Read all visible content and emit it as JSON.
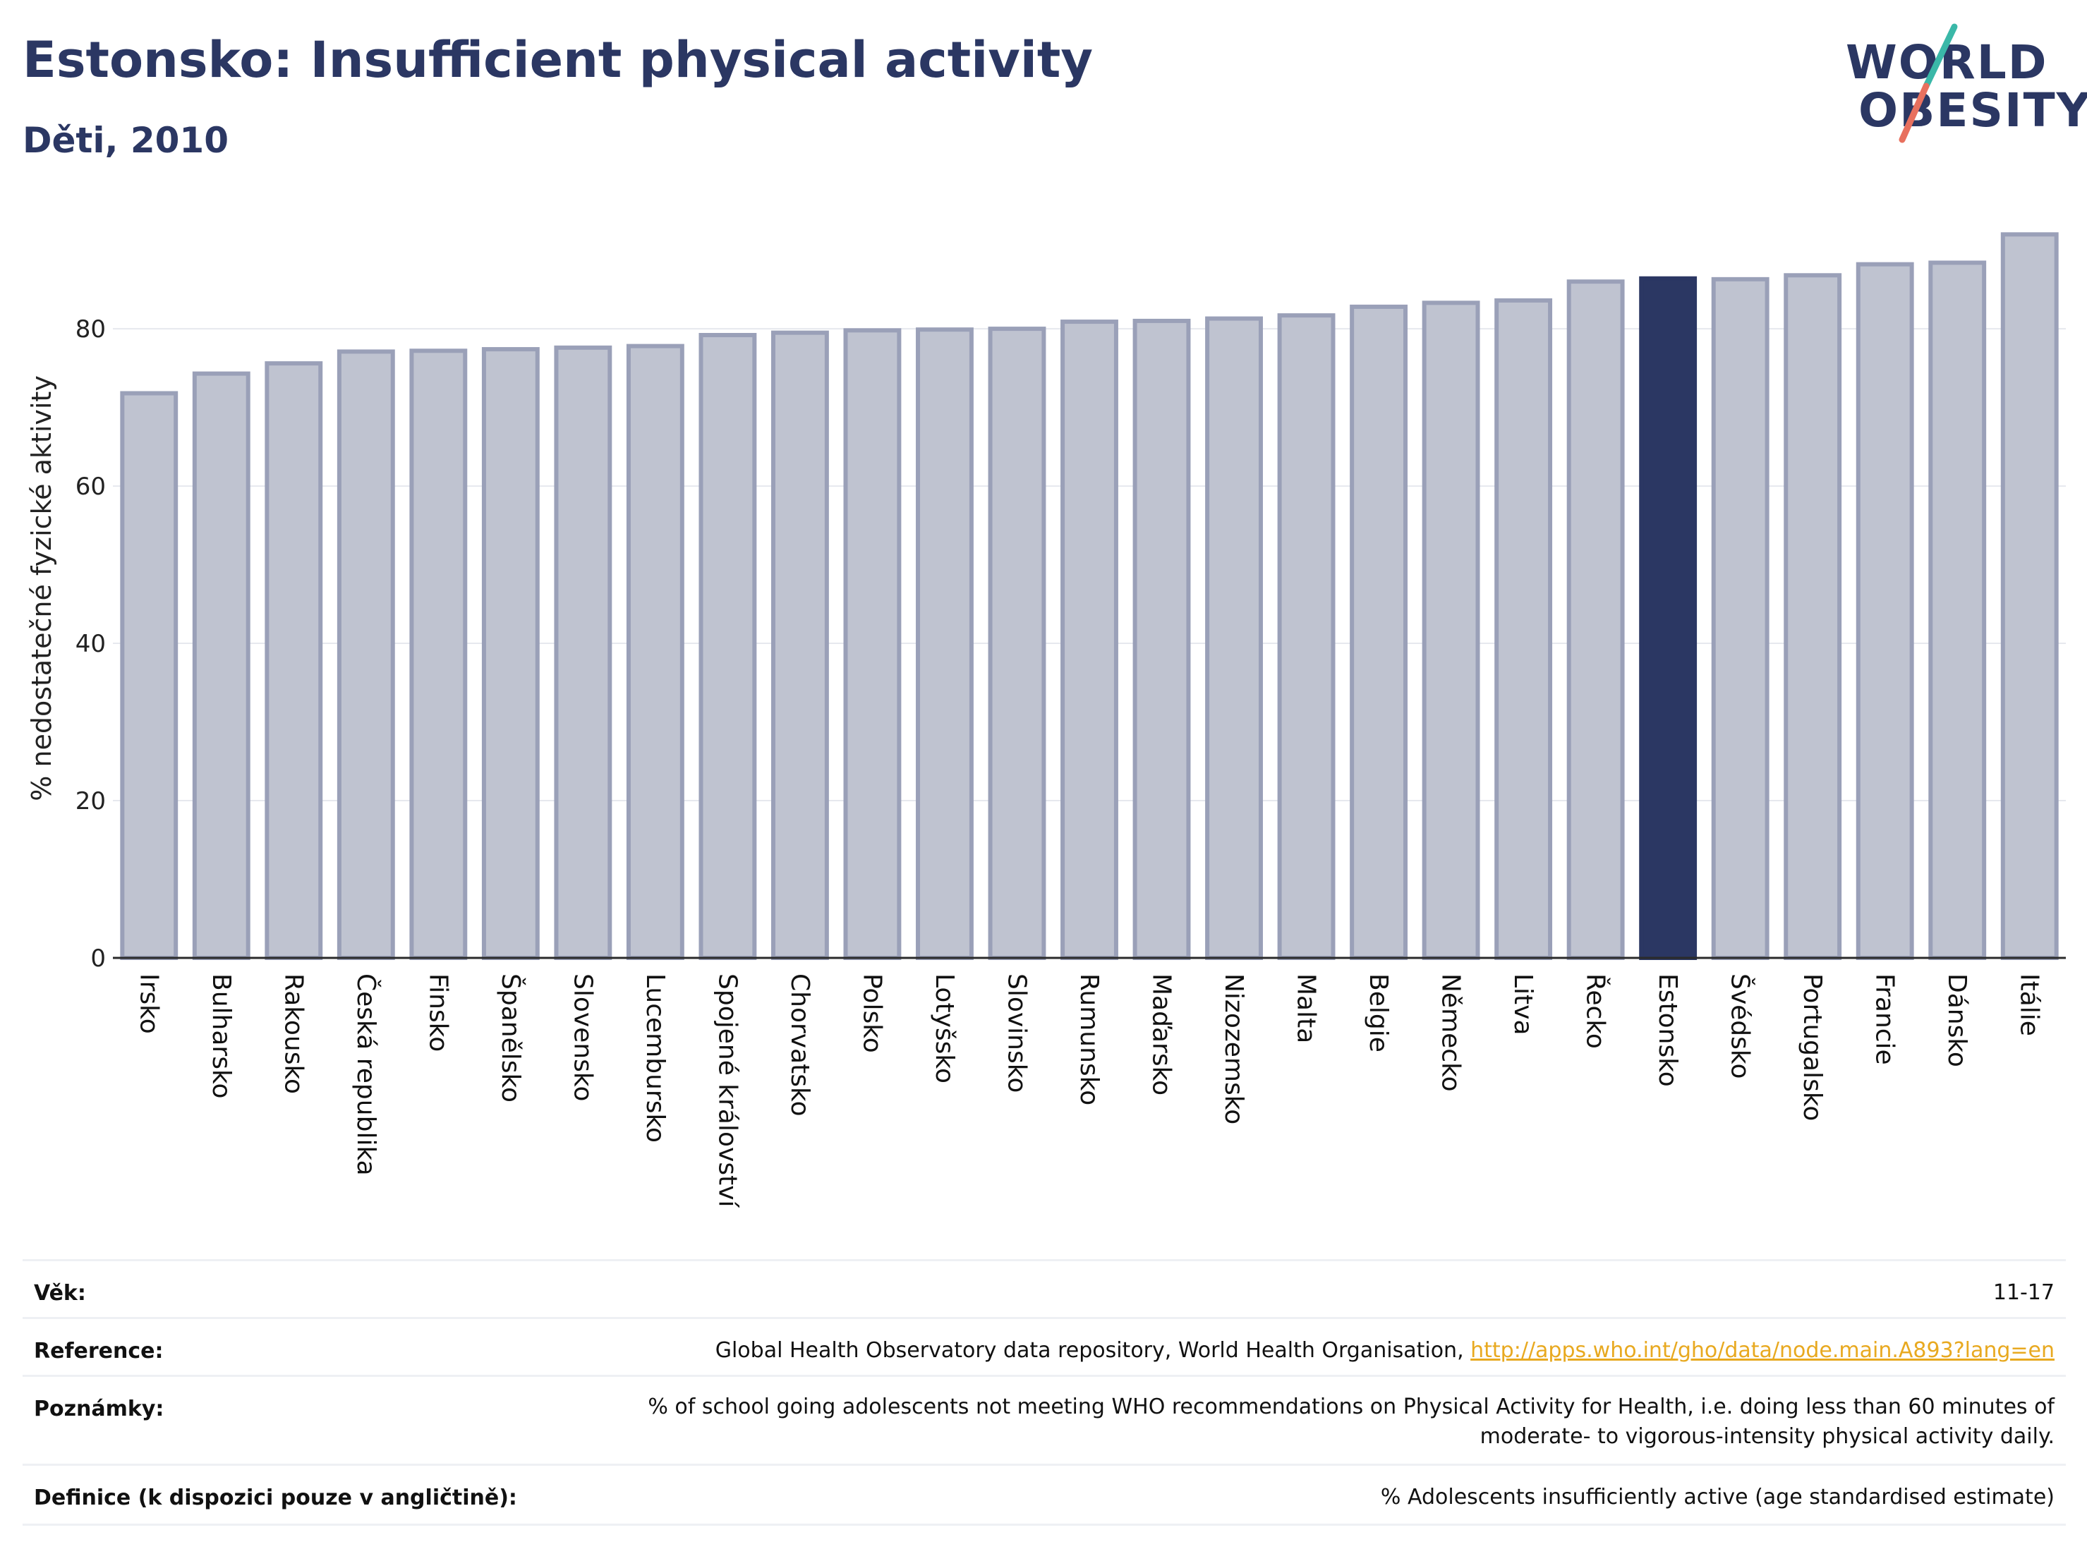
{
  "header": {
    "title": "Estonsko: Insufficient physical activity",
    "subtitle": "Děti, 2010"
  },
  "logo": {
    "line1": "WORLD",
    "line2": "OBESITY"
  },
  "chart_data": {
    "type": "bar",
    "title": "Estonsko: Insufficient physical activity",
    "subtitle": "Děti, 2010",
    "ylabel": "% nedostatečné fyzické aktivity",
    "xlabel": "",
    "ylim": [
      0,
      94
    ],
    "yticks": [
      0,
      20,
      40,
      60,
      80
    ],
    "grid": true,
    "highlight": "Estonsko",
    "colors": {
      "bar": "#bfc3d0",
      "bar_edge": "#9aa0b8",
      "highlight": "#2b3763",
      "grid": "#e6e8ee",
      "axis": "#2a2a2a"
    },
    "categories": [
      "Irsko",
      "Bulharsko",
      "Rakousko",
      "Česká republika",
      "Finsko",
      "Španělsko",
      "Slovensko",
      "Lucembursko",
      "Spojené království",
      "Chorvatsko",
      "Polsko",
      "Lotyšsko",
      "Slovinsko",
      "Rumunsko",
      "Maďarsko",
      "Nizozemsko",
      "Malta",
      "Belgie",
      "Německo",
      "Litva",
      "Řecko",
      "Estonsko",
      "Švédsko",
      "Portugalsko",
      "Francie",
      "Dánsko",
      "Itálie"
    ],
    "values": [
      71.8,
      74.3,
      75.6,
      77.1,
      77.2,
      77.4,
      77.6,
      77.8,
      79.2,
      79.5,
      79.8,
      79.9,
      80.0,
      80.9,
      81.0,
      81.3,
      81.7,
      82.8,
      83.3,
      83.6,
      86.0,
      86.4,
      86.3,
      86.8,
      88.2,
      88.4,
      92.0
    ]
  },
  "info": {
    "age_label": "Věk:",
    "age_value": "11-17",
    "reference_label": "Reference:",
    "reference_text": "Global Health Observatory data repository, World Health Organisation, ",
    "reference_link": "http://apps.who.int/gho/data/node.main.A893?lang=en",
    "notes_label": "Poznámky:",
    "notes_line1": "% of school going adolescents not meeting WHO recommendations on Physical Activity for Health, i.e. doing less than 60 minutes of",
    "notes_line2": "moderate- to vigorous-intensity physical activity daily.",
    "definition_label": "Definice (k dispozici pouze v angličtině):",
    "definition_value": "% Adolescents insufficiently active (age standardised estimate)"
  }
}
